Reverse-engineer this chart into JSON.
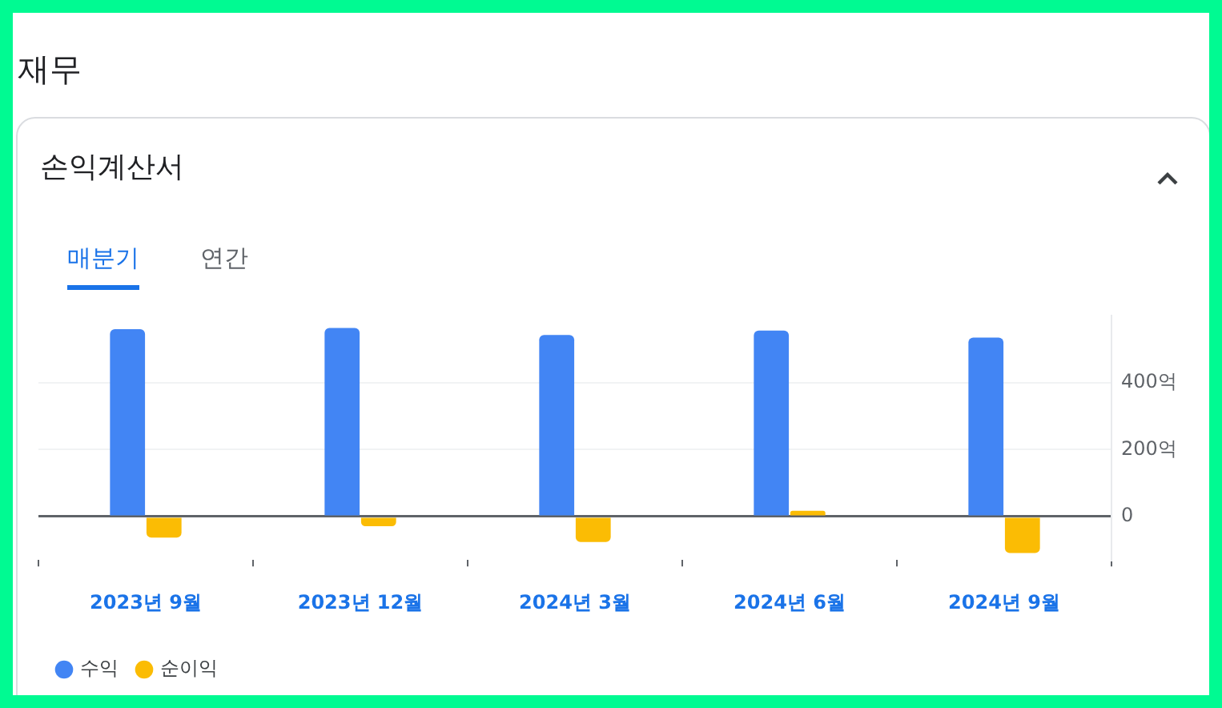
{
  "chart_data": {
    "type": "bar",
    "title": "재무",
    "subtitle": "손익계산서",
    "annotations": [
      "매분기",
      "연간"
    ],
    "categories": [
      "2023년 9월",
      "2023년 12월",
      "2024년 3월",
      "2024년 6월",
      "2024년 9월"
    ],
    "series": [
      {
        "name": "수익",
        "color": "#4285f4",
        "values": [
          560,
          564,
          543,
          556,
          535
        ]
      },
      {
        "name": "순이익",
        "color": "#fbbc04",
        "values": [
          -63,
          -29,
          -76,
          17,
          -109
        ]
      }
    ],
    "ylim": [
      -130,
      600
    ],
    "yticks": [
      0,
      {
        "value": 200,
        "label": "200억"
      },
      {
        "value": 400,
        "label": "400억"
      }
    ],
    "grid": "y",
    "legend": "bottom left"
  }
}
